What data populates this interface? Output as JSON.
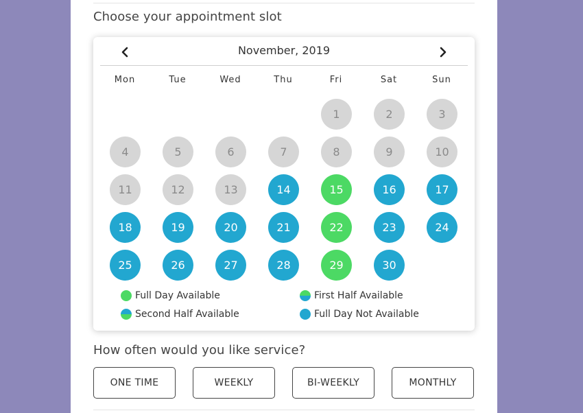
{
  "appointment": {
    "title": "Choose your appointment slot"
  },
  "calendar": {
    "month_label": "November, 2019",
    "prev_icon": "chevron-left-icon",
    "next_icon": "chevron-right-icon",
    "weekdays": [
      "Mon",
      "Tue",
      "Wed",
      "Thu",
      "Fri",
      "Sat",
      "Sun"
    ],
    "days": [
      {
        "label": "1",
        "status": "unavailable-past"
      },
      {
        "label": "2",
        "status": "unavailable-past"
      },
      {
        "label": "3",
        "status": "unavailable-past"
      },
      {
        "label": "4",
        "status": "unavailable-past"
      },
      {
        "label": "5",
        "status": "unavailable-past"
      },
      {
        "label": "6",
        "status": "unavailable-past"
      },
      {
        "label": "7",
        "status": "unavailable-past"
      },
      {
        "label": "8",
        "status": "unavailable-past"
      },
      {
        "label": "9",
        "status": "unavailable-past"
      },
      {
        "label": "10",
        "status": "unavailable-past"
      },
      {
        "label": "11",
        "status": "unavailable-past"
      },
      {
        "label": "12",
        "status": "unavailable-past"
      },
      {
        "label": "13",
        "status": "unavailable-past"
      },
      {
        "label": "14",
        "status": "full-day-not-available"
      },
      {
        "label": "15",
        "status": "full-day-available"
      },
      {
        "label": "16",
        "status": "full-day-not-available"
      },
      {
        "label": "17",
        "status": "full-day-not-available"
      },
      {
        "label": "18",
        "status": "full-day-not-available"
      },
      {
        "label": "19",
        "status": "full-day-not-available"
      },
      {
        "label": "20",
        "status": "full-day-not-available"
      },
      {
        "label": "21",
        "status": "full-day-not-available"
      },
      {
        "label": "22",
        "status": "full-day-available"
      },
      {
        "label": "23",
        "status": "full-day-not-available"
      },
      {
        "label": "24",
        "status": "full-day-not-available"
      },
      {
        "label": "25",
        "status": "full-day-not-available"
      },
      {
        "label": "26",
        "status": "full-day-not-available"
      },
      {
        "label": "27",
        "status": "full-day-not-available"
      },
      {
        "label": "28",
        "status": "full-day-not-available"
      },
      {
        "label": "29",
        "status": "full-day-available"
      },
      {
        "label": "30",
        "status": "full-day-not-available"
      }
    ],
    "legend": [
      {
        "label": "Full Day Available",
        "swatch": "full"
      },
      {
        "label": "First Half Available",
        "swatch": "first-half"
      },
      {
        "label": "Second Half Available",
        "swatch": "second-half"
      },
      {
        "label": "Full Day Not Available",
        "swatch": "none"
      }
    ]
  },
  "service": {
    "title": "How often would you like service?",
    "options": [
      "ONE TIME",
      "WEEKLY",
      "BI-WEEKLY",
      "MONTHLY"
    ]
  },
  "colors": {
    "background": "#8d88ba",
    "available_green": "#4cd964",
    "unavailable_blue": "#22a7d0",
    "past_gray": "#d6d6d6"
  }
}
